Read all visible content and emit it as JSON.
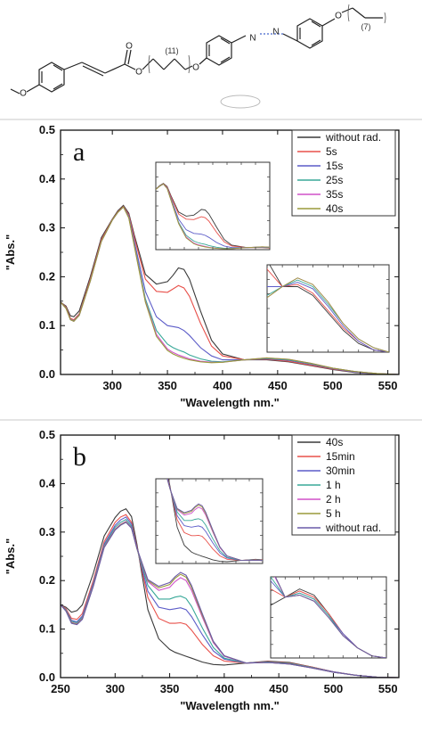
{
  "structure": {
    "chain_labels": [
      "(11)",
      "(7)"
    ],
    "atom_labels": [
      "O",
      "O",
      "O",
      "O",
      "O",
      "N",
      "N"
    ]
  },
  "colors": {
    "s1": "#3a3a3a",
    "s2": "#e8504a",
    "s3": "#5c5cc8",
    "s4": "#38a898",
    "s5": "#d050c8",
    "s6": "#9a9a3a",
    "s7": "#6a5aa8"
  },
  "chart_data": [
    {
      "type": "line",
      "panel_label": "a",
      "xlabel": "\"Wavelength nm.\"",
      "ylabel": "\"Abs.\"",
      "xlim": [
        253,
        560
      ],
      "ylim": [
        0,
        0.5
      ],
      "xticks": [
        300,
        350,
        400,
        450,
        500,
        550
      ],
      "yticks": [
        0.0,
        0.1,
        0.2,
        0.3,
        0.4,
        0.5
      ],
      "grid": false,
      "legend_position": "top-right",
      "series": [
        {
          "name": "without rad.",
          "color_key": "s1",
          "x": [
            253,
            258,
            262,
            265,
            270,
            280,
            290,
            300,
            305,
            310,
            315,
            320,
            330,
            340,
            350,
            355,
            360,
            365,
            370,
            380,
            390,
            400,
            420,
            440,
            460,
            480,
            500,
            520,
            540,
            560
          ],
          "y": [
            0.148,
            0.14,
            0.12,
            0.118,
            0.13,
            0.2,
            0.28,
            0.318,
            0.335,
            0.346,
            0.33,
            0.285,
            0.205,
            0.185,
            0.19,
            0.203,
            0.218,
            0.215,
            0.195,
            0.13,
            0.07,
            0.042,
            0.03,
            0.03,
            0.026,
            0.018,
            0.01,
            0.004,
            0.001,
            0.0
          ]
        },
        {
          "name": "5s",
          "color_key": "s2",
          "x": [
            253,
            258,
            262,
            265,
            270,
            280,
            290,
            300,
            305,
            310,
            315,
            320,
            330,
            340,
            350,
            355,
            360,
            365,
            370,
            380,
            390,
            400,
            420,
            440,
            460,
            480,
            500,
            520,
            540,
            560
          ],
          "y": [
            0.148,
            0.138,
            0.115,
            0.112,
            0.124,
            0.195,
            0.276,
            0.317,
            0.333,
            0.344,
            0.327,
            0.28,
            0.195,
            0.17,
            0.168,
            0.175,
            0.182,
            0.177,
            0.16,
            0.105,
            0.058,
            0.038,
            0.03,
            0.031,
            0.027,
            0.019,
            0.011,
            0.005,
            0.001,
            0.0
          ]
        },
        {
          "name": "15s",
          "color_key": "s3",
          "x": [
            253,
            258,
            262,
            265,
            270,
            280,
            290,
            300,
            305,
            310,
            315,
            320,
            330,
            340,
            350,
            355,
            360,
            365,
            370,
            380,
            390,
            400,
            420,
            440,
            460,
            480,
            500,
            520,
            540,
            560
          ],
          "y": [
            0.148,
            0.136,
            0.113,
            0.11,
            0.122,
            0.192,
            0.273,
            0.316,
            0.332,
            0.343,
            0.324,
            0.272,
            0.17,
            0.118,
            0.1,
            0.098,
            0.096,
            0.09,
            0.08,
            0.055,
            0.038,
            0.03,
            0.03,
            0.032,
            0.029,
            0.021,
            0.012,
            0.005,
            0.001,
            0.0
          ]
        },
        {
          "name": "25s",
          "color_key": "s4",
          "x": [
            253,
            258,
            262,
            265,
            270,
            280,
            290,
            300,
            305,
            310,
            315,
            320,
            330,
            340,
            350,
            355,
            360,
            365,
            370,
            380,
            390,
            400,
            420,
            440,
            460,
            480,
            500,
            520,
            540,
            560
          ],
          "y": [
            0.148,
            0.136,
            0.112,
            0.109,
            0.121,
            0.191,
            0.272,
            0.316,
            0.332,
            0.343,
            0.322,
            0.266,
            0.155,
            0.09,
            0.062,
            0.055,
            0.05,
            0.046,
            0.04,
            0.032,
            0.027,
            0.026,
            0.03,
            0.033,
            0.03,
            0.022,
            0.013,
            0.006,
            0.002,
            0.0
          ]
        },
        {
          "name": "35s",
          "color_key": "s5",
          "x": [
            253,
            258,
            262,
            265,
            270,
            280,
            290,
            300,
            305,
            310,
            315,
            320,
            330,
            340,
            350,
            355,
            360,
            365,
            370,
            380,
            390,
            400,
            420,
            440,
            460,
            480,
            500,
            520,
            540,
            560
          ],
          "y": [
            0.148,
            0.135,
            0.112,
            0.109,
            0.121,
            0.191,
            0.272,
            0.316,
            0.332,
            0.343,
            0.321,
            0.264,
            0.15,
            0.082,
            0.052,
            0.045,
            0.04,
            0.036,
            0.032,
            0.027,
            0.025,
            0.025,
            0.03,
            0.034,
            0.031,
            0.023,
            0.013,
            0.006,
            0.002,
            0.0
          ]
        },
        {
          "name": "40s",
          "color_key": "s6",
          "x": [
            253,
            258,
            262,
            265,
            270,
            280,
            290,
            300,
            305,
            310,
            315,
            320,
            330,
            340,
            350,
            355,
            360,
            365,
            370,
            380,
            390,
            400,
            420,
            440,
            460,
            480,
            500,
            520,
            540,
            560
          ],
          "y": [
            0.148,
            0.135,
            0.112,
            0.109,
            0.121,
            0.191,
            0.272,
            0.316,
            0.332,
            0.343,
            0.32,
            0.262,
            0.148,
            0.078,
            0.049,
            0.042,
            0.037,
            0.033,
            0.03,
            0.026,
            0.024,
            0.025,
            0.03,
            0.034,
            0.031,
            0.023,
            0.013,
            0.006,
            0.002,
            0.0
          ]
        }
      ]
    },
    {
      "type": "line",
      "panel_label": "b",
      "xlabel": "\"Wavelength nm.\"",
      "ylabel": "\"Abs.\"",
      "xlim": [
        250,
        560
      ],
      "ylim": [
        0,
        0.5
      ],
      "xticks": [
        250,
        300,
        350,
        400,
        450,
        500,
        550
      ],
      "yticks": [
        0.0,
        0.1,
        0.2,
        0.3,
        0.4,
        0.5
      ],
      "grid": false,
      "legend_position": "top-right",
      "series": [
        {
          "name": "40s",
          "color_key": "s1",
          "x": [
            250,
            255,
            260,
            265,
            270,
            280,
            290,
            300,
            305,
            310,
            315,
            320,
            330,
            340,
            350,
            355,
            360,
            365,
            370,
            380,
            390,
            400,
            420,
            440,
            460,
            480,
            500,
            520,
            540,
            560
          ],
          "y": [
            0.15,
            0.145,
            0.135,
            0.138,
            0.15,
            0.215,
            0.292,
            0.33,
            0.343,
            0.348,
            0.332,
            0.275,
            0.14,
            0.08,
            0.058,
            0.052,
            0.048,
            0.044,
            0.04,
            0.032,
            0.027,
            0.026,
            0.03,
            0.034,
            0.031,
            0.022,
            0.012,
            0.005,
            0.001,
            0.0
          ]
        },
        {
          "name": "15min",
          "color_key": "s2",
          "x": [
            250,
            255,
            260,
            265,
            270,
            280,
            290,
            300,
            305,
            310,
            315,
            320,
            330,
            340,
            350,
            355,
            360,
            365,
            370,
            380,
            390,
            400,
            420,
            440,
            460,
            480,
            500,
            520,
            540,
            560
          ],
          "y": [
            0.15,
            0.142,
            0.122,
            0.12,
            0.132,
            0.2,
            0.28,
            0.32,
            0.331,
            0.336,
            0.32,
            0.27,
            0.165,
            0.122,
            0.112,
            0.112,
            0.113,
            0.11,
            0.098,
            0.068,
            0.045,
            0.034,
            0.03,
            0.033,
            0.03,
            0.022,
            0.012,
            0.005,
            0.001,
            0.0
          ]
        },
        {
          "name": "30min",
          "color_key": "s3",
          "x": [
            250,
            255,
            260,
            265,
            270,
            280,
            290,
            300,
            305,
            310,
            315,
            320,
            330,
            340,
            350,
            355,
            360,
            365,
            370,
            380,
            390,
            400,
            420,
            440,
            460,
            480,
            500,
            520,
            540,
            560
          ],
          "y": [
            0.15,
            0.14,
            0.118,
            0.115,
            0.127,
            0.195,
            0.275,
            0.314,
            0.325,
            0.331,
            0.316,
            0.268,
            0.178,
            0.145,
            0.14,
            0.142,
            0.144,
            0.14,
            0.126,
            0.088,
            0.055,
            0.038,
            0.03,
            0.032,
            0.029,
            0.021,
            0.012,
            0.005,
            0.001,
            0.0
          ]
        },
        {
          "name": "1 h",
          "color_key": "s4",
          "x": [
            250,
            255,
            260,
            265,
            270,
            280,
            290,
            300,
            305,
            310,
            315,
            320,
            330,
            340,
            350,
            355,
            360,
            365,
            370,
            380,
            390,
            400,
            420,
            440,
            460,
            480,
            500,
            520,
            540,
            560
          ],
          "y": [
            0.15,
            0.139,
            0.116,
            0.113,
            0.124,
            0.192,
            0.272,
            0.31,
            0.32,
            0.326,
            0.312,
            0.266,
            0.19,
            0.162,
            0.162,
            0.166,
            0.168,
            0.163,
            0.147,
            0.102,
            0.062,
            0.04,
            0.03,
            0.032,
            0.029,
            0.021,
            0.011,
            0.005,
            0.001,
            0.0
          ]
        },
        {
          "name": "2 h",
          "color_key": "s5",
          "x": [
            250,
            255,
            260,
            265,
            270,
            280,
            290,
            300,
            305,
            310,
            315,
            320,
            330,
            340,
            350,
            355,
            360,
            365,
            370,
            380,
            390,
            400,
            420,
            440,
            460,
            480,
            500,
            520,
            540,
            560
          ],
          "y": [
            0.15,
            0.138,
            0.114,
            0.111,
            0.122,
            0.19,
            0.27,
            0.306,
            0.316,
            0.322,
            0.309,
            0.266,
            0.198,
            0.18,
            0.186,
            0.198,
            0.206,
            0.2,
            0.18,
            0.124,
            0.072,
            0.044,
            0.03,
            0.031,
            0.028,
            0.02,
            0.011,
            0.005,
            0.001,
            0.0
          ]
        },
        {
          "name": "5 h",
          "color_key": "s6",
          "x": [
            250,
            255,
            260,
            265,
            270,
            280,
            290,
            300,
            305,
            310,
            315,
            320,
            330,
            340,
            350,
            355,
            360,
            365,
            370,
            380,
            390,
            400,
            420,
            440,
            460,
            480,
            500,
            520,
            540,
            560
          ],
          "y": [
            0.15,
            0.138,
            0.113,
            0.11,
            0.121,
            0.189,
            0.269,
            0.305,
            0.315,
            0.321,
            0.308,
            0.266,
            0.2,
            0.185,
            0.192,
            0.205,
            0.213,
            0.207,
            0.186,
            0.128,
            0.074,
            0.045,
            0.03,
            0.031,
            0.028,
            0.02,
            0.011,
            0.005,
            0.001,
            0.0
          ]
        },
        {
          "name": "without rad.",
          "color_key": "s7",
          "x": [
            250,
            255,
            260,
            265,
            270,
            280,
            290,
            300,
            305,
            310,
            315,
            320,
            330,
            340,
            350,
            355,
            360,
            365,
            370,
            380,
            390,
            400,
            420,
            440,
            460,
            480,
            500,
            520,
            540,
            560
          ],
          "y": [
            0.15,
            0.137,
            0.112,
            0.109,
            0.12,
            0.188,
            0.268,
            0.304,
            0.314,
            0.32,
            0.308,
            0.267,
            0.202,
            0.188,
            0.196,
            0.208,
            0.217,
            0.211,
            0.19,
            0.131,
            0.075,
            0.045,
            0.03,
            0.031,
            0.028,
            0.02,
            0.011,
            0.005,
            0.001,
            0.0
          ]
        }
      ]
    }
  ]
}
